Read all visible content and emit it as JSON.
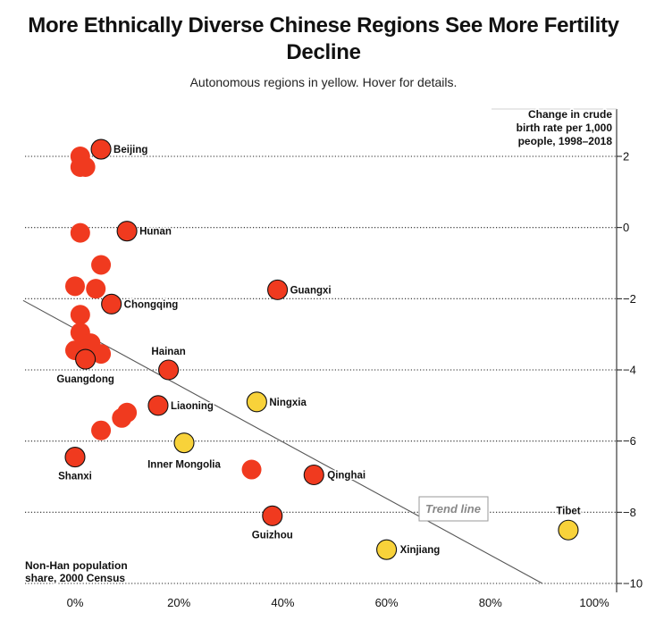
{
  "page": {
    "title": "More Ethnically Diverse Chinese Regions See More Fertility Decline",
    "subtitle": "Autonomous regions in yellow. Hover for details."
  },
  "chart_data": {
    "type": "scatter",
    "title": "More Ethnically Diverse Chinese Regions See More Fertility Decline",
    "subtitle": "Autonomous regions in yellow. Hover for details.",
    "xlabel": "Non-Han population share, 2000 Census",
    "ylabel": "Change in crude birth rate per 1,000 people, 1998–2018",
    "xlim": [
      -10,
      105
    ],
    "ylim": [
      -10,
      3.4
    ],
    "x_ticks": [
      0,
      20,
      40,
      60,
      80,
      100
    ],
    "x_tick_labels": [
      "0%",
      "20%",
      "40%",
      "60%",
      "80%",
      "100%"
    ],
    "y_ticks": [
      2,
      0,
      -2,
      -4,
      -6,
      -8,
      -10
    ],
    "y_tick_labels": [
      "2",
      "0",
      "−2",
      "−4",
      "−6",
      "−8",
      "−10"
    ],
    "grid": "horizontal dotted",
    "trend_line": {
      "label": "Trend line",
      "x": [
        -10,
        90
      ],
      "y": [
        -2.05,
        -10
      ]
    },
    "colors": {
      "regular": "#f03a1f",
      "autonomous": "#f8d23a",
      "outline": "#111111",
      "trend": "#555555"
    },
    "points": [
      {
        "x": 5,
        "y": 2.2,
        "label": "Beijing",
        "autonomous": false
      },
      {
        "x": 1,
        "y": 2.0,
        "label": "",
        "autonomous": false
      },
      {
        "x": 1,
        "y": 1.7,
        "label": "",
        "autonomous": false
      },
      {
        "x": 2,
        "y": 1.7,
        "label": "",
        "autonomous": false
      },
      {
        "x": 10,
        "y": -0.1,
        "label": "Hunan",
        "autonomous": false
      },
      {
        "x": 1,
        "y": -0.15,
        "label": "",
        "autonomous": false
      },
      {
        "x": 5,
        "y": -1.05,
        "label": "",
        "autonomous": false
      },
      {
        "x": 0,
        "y": -1.65,
        "label": "",
        "autonomous": false
      },
      {
        "x": 4,
        "y": -1.72,
        "label": "",
        "autonomous": false
      },
      {
        "x": 39,
        "y": -1.75,
        "label": "Guangxi",
        "autonomous": false
      },
      {
        "x": 7,
        "y": -2.15,
        "label": "Chongqing",
        "autonomous": false
      },
      {
        "x": 1,
        "y": -2.45,
        "label": "",
        "autonomous": false
      },
      {
        "x": 1,
        "y": -2.95,
        "label": "",
        "autonomous": false
      },
      {
        "x": 3,
        "y": -3.25,
        "label": "",
        "autonomous": false
      },
      {
        "x": 0,
        "y": -3.45,
        "label": "",
        "autonomous": false
      },
      {
        "x": 2,
        "y": -3.45,
        "label": "",
        "autonomous": false
      },
      {
        "x": 5,
        "y": -3.55,
        "label": "",
        "autonomous": false
      },
      {
        "x": 2,
        "y": -3.7,
        "label": "Guangdong",
        "autonomous": false
      },
      {
        "x": 18,
        "y": -4.0,
        "label": "Hainan",
        "autonomous": false
      },
      {
        "x": 35,
        "y": -4.9,
        "label": "Ningxia",
        "autonomous": true
      },
      {
        "x": 16,
        "y": -5.0,
        "label": "Liaoning",
        "autonomous": false
      },
      {
        "x": 10,
        "y": -5.2,
        "label": "",
        "autonomous": false
      },
      {
        "x": 9,
        "y": -5.35,
        "label": "",
        "autonomous": false
      },
      {
        "x": 5,
        "y": -5.7,
        "label": "",
        "autonomous": false
      },
      {
        "x": 21,
        "y": -6.05,
        "label": "Inner Mongolia",
        "autonomous": true
      },
      {
        "x": 0,
        "y": -6.45,
        "label": "Shanxi",
        "autonomous": false
      },
      {
        "x": 34,
        "y": -6.8,
        "label": "",
        "autonomous": false
      },
      {
        "x": 46,
        "y": -6.95,
        "label": "Qinghai",
        "autonomous": false
      },
      {
        "x": 38,
        "y": -8.1,
        "label": "Guizhou",
        "autonomous": false
      },
      {
        "x": 95,
        "y": -8.5,
        "label": "Tibet",
        "autonomous": true
      },
      {
        "x": 60,
        "y": -9.05,
        "label": "Xinjiang",
        "autonomous": true
      }
    ]
  }
}
